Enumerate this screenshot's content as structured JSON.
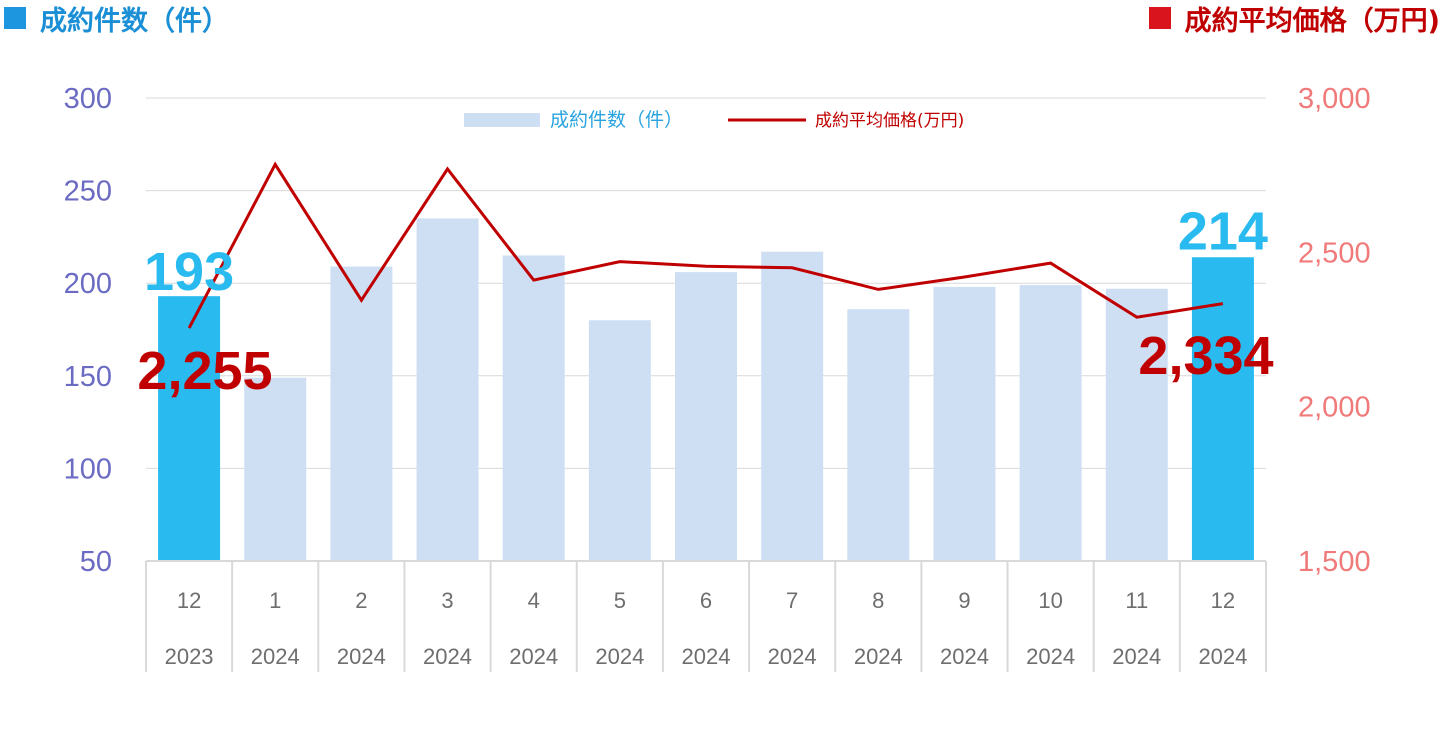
{
  "header": {
    "left_title": "成約件数（件）",
    "right_title": "成約平均価格（万円)"
  },
  "colors": {
    "bar_highlight": "#29bbef",
    "bar_normal": "#cfdff3",
    "line": "#c00000",
    "left_axis_text": "#6b6bc4",
    "right_axis_text": "#f07a7a",
    "grid": "#d9d9d9"
  },
  "chart_data": {
    "type": "bar+line",
    "categories": [
      {
        "month": "12",
        "year": "2023"
      },
      {
        "month": "1",
        "year": "2024"
      },
      {
        "month": "2",
        "year": "2024"
      },
      {
        "month": "3",
        "year": "2024"
      },
      {
        "month": "4",
        "year": "2024"
      },
      {
        "month": "5",
        "year": "2024"
      },
      {
        "month": "6",
        "year": "2024"
      },
      {
        "month": "7",
        "year": "2024"
      },
      {
        "month": "8",
        "year": "2024"
      },
      {
        "month": "9",
        "year": "2024"
      },
      {
        "month": "10",
        "year": "2024"
      },
      {
        "month": "11",
        "year": "2024"
      },
      {
        "month": "12",
        "year": "2024"
      }
    ],
    "series": [
      {
        "name": "成約件数（件）",
        "type": "bar",
        "axis": "left",
        "values": [
          193,
          149,
          209,
          235,
          215,
          180,
          206,
          217,
          186,
          198,
          199,
          197,
          214
        ],
        "highlight": [
          true,
          false,
          false,
          false,
          false,
          false,
          false,
          false,
          false,
          false,
          false,
          false,
          true
        ]
      },
      {
        "name": "成約平均価格(万円)",
        "type": "line",
        "axis": "right",
        "values": [
          2255,
          2785,
          2345,
          2770,
          2410,
          2470,
          2455,
          2450,
          2380,
          2420,
          2465,
          2290,
          2334
        ]
      }
    ],
    "y_left": {
      "min": 50,
      "max": 300,
      "ticks": [
        "300",
        "250",
        "200",
        "150",
        "100",
        "50"
      ]
    },
    "y_right": {
      "min": 1500,
      "max": 3000,
      "ticks": [
        "3,000",
        "2,500",
        "2,000",
        "1,500"
      ]
    },
    "callouts": {
      "bar_first": "193",
      "bar_last": "214",
      "line_first": "2,255",
      "line_last": "2,334"
    },
    "legend": {
      "position": "top-center",
      "bar_label": "成約件数（件）",
      "line_label": "成約平均価格(万円)"
    },
    "grid": true
  }
}
